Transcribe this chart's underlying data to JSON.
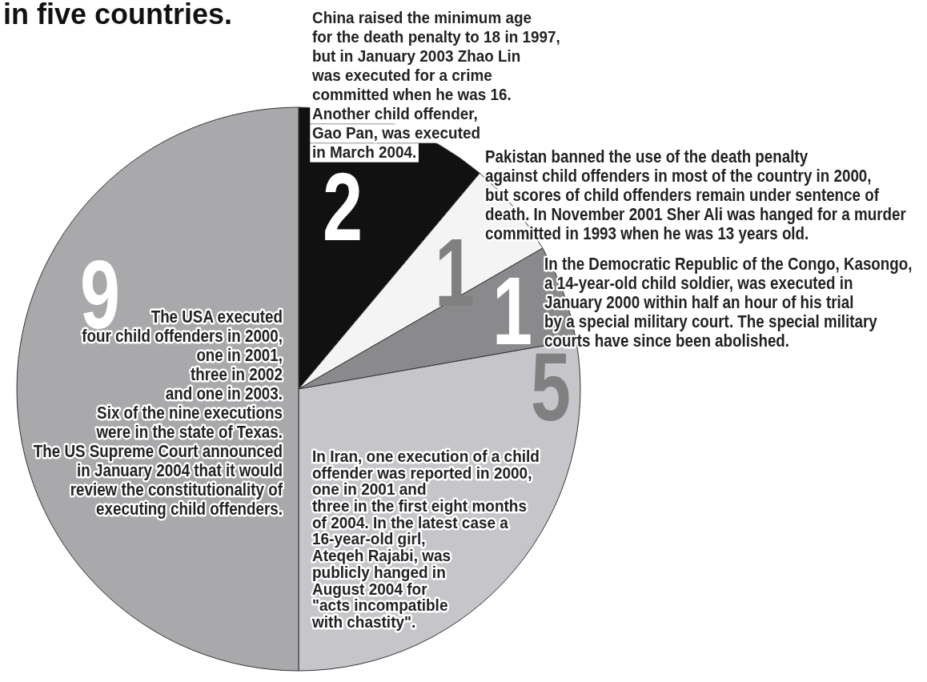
{
  "chart_data": {
    "type": "pie",
    "title": "in five countries.",
    "categories": [
      null,
      null,
      null,
      null,
      null
    ],
    "values": [
      2,
      1,
      1,
      5,
      9
    ],
    "colors": [
      "#111111",
      "#f4f4f4",
      "#8a8a8c",
      "#c6c6ca",
      "#a9a9ac"
    ],
    "data_labels": true,
    "annotations": [
      "China raised the minimum age\nfor the death penalty to 18 in 1997,\nbut in January 2003 Zhao Lin\nwas executed for a crime\ncommitted when he was 16.\nAnother child offender,\nGao Pan, was executed\nin March 2004.",
      "Pakistan banned the use of the death penalty\nagainst child offenders in most of the country in 2000,\nbut scores of child offenders remain under sentence of\ndeath. In November 2001 Sher Ali was hanged for a murder\ncommitted in 1993 when he was 13 years old.",
      "In the Democratic Republic of the Congo, Kasongo,\na 14-year-old child soldier, was executed in\nJanuary 2000 within half an hour of his trial\nby a special military court. The special military\ncourts have since been abolished.",
      "In Iran, one execution of a child\noffender was reported in 2000,\none in 2001 and\nthree in the first eight months\nof 2004. In the latest case a\n16-year-old girl,\nAteqeh Rajabi, was\npublicly hanged in\nAugust 2004 for\n\"acts incompatible\nwith chastity\".",
      "The USA executed\nfour child offenders in 2000,\none in 2001,\nthree in 2002\nand one in 2003.\nSix of the nine executions\nwere in the state of Texas.\nThe US Supreme Court announced\nin January 2004 that it would\nreview the constitutionality of\nexecuting child offenders."
    ]
  }
}
